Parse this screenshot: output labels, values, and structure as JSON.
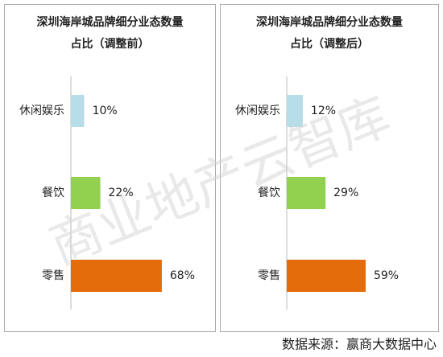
{
  "chart_data": [
    {
      "type": "barh",
      "title": "深圳海岸城品牌细分业态数量",
      "subtitle": "占比（调整前）",
      "categories": [
        "休闲娱乐",
        "餐饮",
        "零售"
      ],
      "values": [
        10,
        22,
        68
      ],
      "value_labels": [
        "10%",
        "22%",
        "68%"
      ],
      "colors": [
        "#b7dde8",
        "#92d050",
        "#e46c0a"
      ]
    },
    {
      "type": "barh",
      "title": "深圳海岸城品牌细分业态数量",
      "subtitle": "占比（调整后）",
      "categories": [
        "休闲娱乐",
        "餐饮",
        "零售"
      ],
      "values": [
        12,
        29,
        59
      ],
      "value_labels": [
        "12%",
        "29%",
        "59%"
      ],
      "colors": [
        "#b7dde8",
        "#92d050",
        "#e46c0a"
      ]
    }
  ],
  "source": "数据来源：赢商大数据中心",
  "watermark": "商业地产云智库"
}
